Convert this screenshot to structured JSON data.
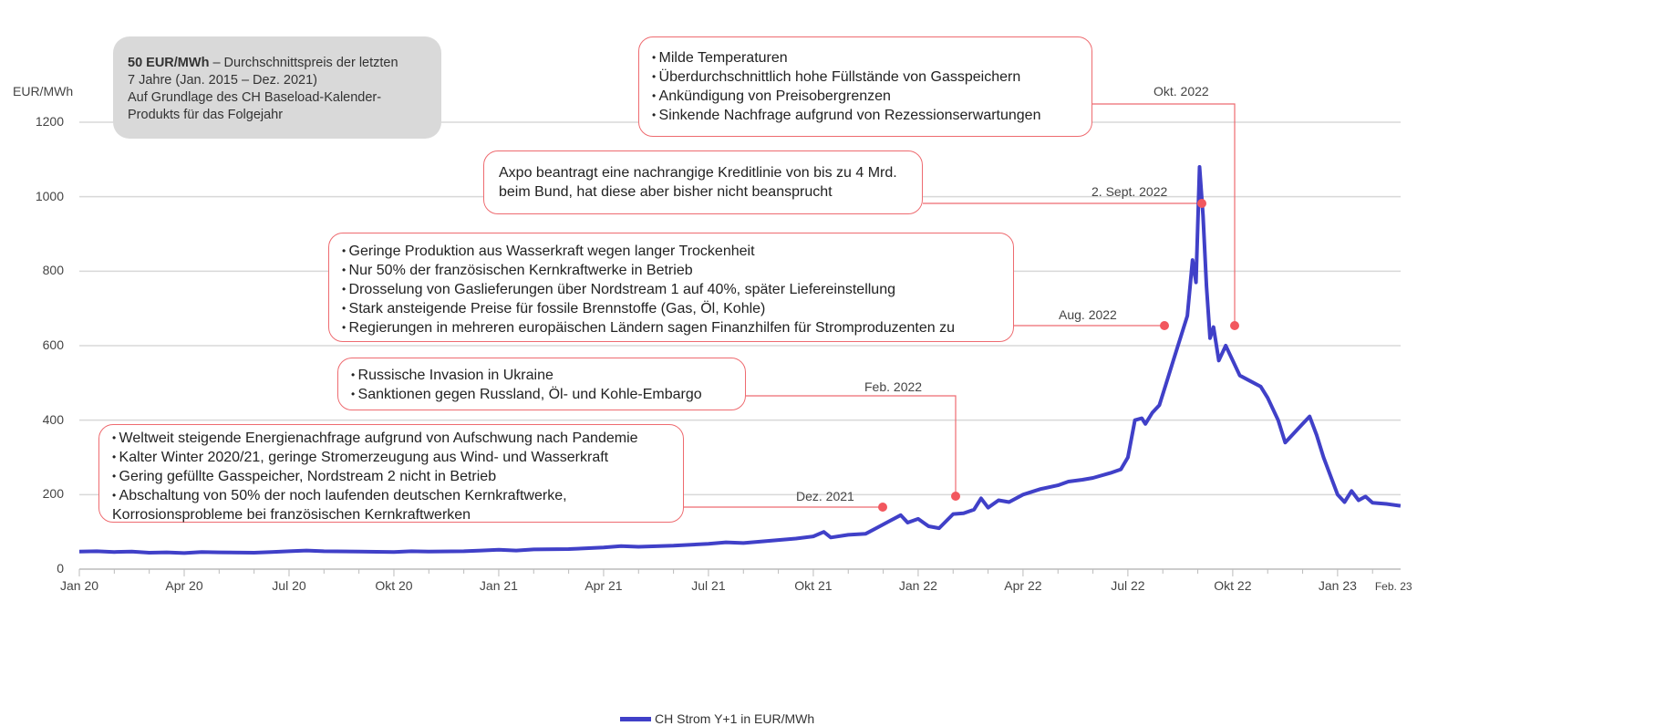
{
  "chart_data": {
    "type": "line",
    "ylabel": "EUR/MWh",
    "ylim": [
      0,
      1200
    ],
    "yticks": [
      "0",
      "200",
      "400",
      "600",
      "800",
      "1000",
      "1200"
    ],
    "xticks": [
      {
        "label": "Jan 20",
        "m": 0
      },
      {
        "label": "Apr 20",
        "m": 3
      },
      {
        "label": "Jul 20",
        "m": 6
      },
      {
        "label": "Okt 20",
        "m": 9
      },
      {
        "label": "Jan 21",
        "m": 12
      },
      {
        "label": "Apr 21",
        "m": 15
      },
      {
        "label": "Jul 21",
        "m": 18
      },
      {
        "label": "Okt 21",
        "m": 21
      },
      {
        "label": "Jan 22",
        "m": 24
      },
      {
        "label": "Apr 22",
        "m": 27
      },
      {
        "label": "Jul 22",
        "m": 30
      },
      {
        "label": "Okt 22",
        "m": 33
      },
      {
        "label": "Jan 23",
        "m": 36
      },
      {
        "label": "Feb. 23",
        "m": 37.6
      }
    ],
    "x_unit": "months since Jan 2020",
    "grid": true,
    "legend": {
      "position": "bottom",
      "label": "CH Strom Y+1 in EUR/MWh"
    },
    "series": [
      {
        "name": "CH Strom Y+1 in EUR/MWh",
        "color": "#4040c8",
        "points": [
          [
            0,
            47
          ],
          [
            0.5,
            48
          ],
          [
            1,
            46
          ],
          [
            1.5,
            47
          ],
          [
            2,
            44
          ],
          [
            2.5,
            45
          ],
          [
            3,
            43
          ],
          [
            3.5,
            46
          ],
          [
            4,
            45
          ],
          [
            5,
            44
          ],
          [
            5.5,
            46
          ],
          [
            6,
            48
          ],
          [
            6.5,
            50
          ],
          [
            7,
            48
          ],
          [
            8,
            47
          ],
          [
            9,
            46
          ],
          [
            9.5,
            48
          ],
          [
            10,
            47
          ],
          [
            11,
            48
          ],
          [
            11.5,
            50
          ],
          [
            12,
            52
          ],
          [
            12.5,
            50
          ],
          [
            13,
            53
          ],
          [
            14,
            54
          ],
          [
            15,
            58
          ],
          [
            15.5,
            62
          ],
          [
            16,
            60
          ],
          [
            17,
            63
          ],
          [
            18,
            68
          ],
          [
            18.5,
            72
          ],
          [
            19,
            70
          ],
          [
            20,
            78
          ],
          [
            20.5,
            82
          ],
          [
            21,
            88
          ],
          [
            21.3,
            100
          ],
          [
            21.5,
            85
          ],
          [
            22,
            92
          ],
          [
            22.5,
            95
          ],
          [
            22.8,
            110
          ],
          [
            23.2,
            130
          ],
          [
            23.5,
            145
          ],
          [
            23.7,
            125
          ],
          [
            24,
            135
          ],
          [
            24.3,
            115
          ],
          [
            24.6,
            110
          ],
          [
            25,
            148
          ],
          [
            25.3,
            150
          ],
          [
            25.6,
            160
          ],
          [
            25.8,
            190
          ],
          [
            26,
            165
          ],
          [
            26.3,
            185
          ],
          [
            26.6,
            180
          ],
          [
            27,
            200
          ],
          [
            27.5,
            215
          ],
          [
            28,
            225
          ],
          [
            28.3,
            235
          ],
          [
            28.7,
            240
          ],
          [
            29,
            245
          ],
          [
            29.5,
            258
          ],
          [
            29.8,
            268
          ],
          [
            30,
            300
          ],
          [
            30.2,
            400
          ],
          [
            30.4,
            405
          ],
          [
            30.5,
            390
          ],
          [
            30.7,
            420
          ],
          [
            30.9,
            440
          ],
          [
            31.1,
            500
          ],
          [
            31.3,
            560
          ],
          [
            31.5,
            620
          ],
          [
            31.7,
            680
          ],
          [
            31.85,
            830
          ],
          [
            31.95,
            770
          ],
          [
            32.05,
            1080
          ],
          [
            32.15,
            950
          ],
          [
            32.25,
            760
          ],
          [
            32.35,
            620
          ],
          [
            32.45,
            650
          ],
          [
            32.6,
            560
          ],
          [
            32.8,
            600
          ],
          [
            33,
            560
          ],
          [
            33.2,
            520
          ],
          [
            33.5,
            505
          ],
          [
            33.8,
            490
          ],
          [
            34,
            460
          ],
          [
            34.3,
            400
          ],
          [
            34.5,
            340
          ],
          [
            34.7,
            360
          ],
          [
            35,
            390
          ],
          [
            35.2,
            410
          ],
          [
            35.4,
            360
          ],
          [
            35.6,
            300
          ],
          [
            35.8,
            250
          ],
          [
            36,
            200
          ],
          [
            36.2,
            180
          ],
          [
            36.4,
            210
          ],
          [
            36.6,
            185
          ],
          [
            36.8,
            195
          ],
          [
            37,
            178
          ],
          [
            37.4,
            175
          ],
          [
            37.8,
            170
          ]
        ]
      }
    ]
  },
  "summary_box": {
    "bold": "50 EUR/MWh",
    "line1_rest": " – Durchschnittspreis der letzten",
    "line2": "7 Jahre (Jan. 2015 – Dez. 2021)",
    "line3": "Auf Grundlage des CH Baseload-Kalender-",
    "line4": "Produkts für das Folgejahr"
  },
  "events": [
    {
      "date": "Okt. 2022",
      "bullets": [
        "Milde Temperaturen",
        "Überdurchschnittlich hohe Füllstände von Gasspeichern",
        "Ankündigung von Preisobergrenzen",
        "Sinkende Nachfrage aufgrund von Rezessionserwartungen"
      ]
    },
    {
      "date": "2. Sept. 2022",
      "text": [
        "Axpo beantragt eine nachrangige Kreditlinie von bis zu 4 Mrd.",
        "beim Bund, hat diese aber bisher nicht beansprucht"
      ]
    },
    {
      "date": "Aug. 2022",
      "bullets": [
        "Geringe Produktion aus Wasserkraft wegen langer Trockenheit",
        "Nur 50% der französischen Kernkraftwerke in Betrieb",
        "Drosselung von Gaslieferungen über Nordstream 1 auf 40%, später Liefereinstellung",
        "Stark ansteigende Preise für fossile Brennstoffe (Gas, Öl, Kohle)",
        "Regierungen in mehreren europäischen Ländern sagen Finanzhilfen für Stromproduzenten zu"
      ]
    },
    {
      "date": "Feb. 2022",
      "bullets": [
        "Russische Invasion in Ukraine",
        "Sanktionen gegen Russland, Öl- und Kohle-Embargo"
      ]
    },
    {
      "date": "Dez. 2021",
      "bullets": [
        "Weltweit steigende Energienachfrage aufgrund von Aufschwung nach Pandemie",
        "Kalter Winter 2020/21, geringe Stromerzeugung aus Wind- und Wasserkraft",
        "Gering gefüllte Gasspeicher, Nordstream 2 nicht in Betrieb",
        "Abschaltung von 50% der noch laufenden deutschen Kernkraftwerke, Korrosionsprobleme bei französischen Kernkraftwerken"
      ]
    }
  ],
  "colors": {
    "line": "#4040c8",
    "annotation": "#ee6b70",
    "grid": "#d8d8d8",
    "summary_bg": "#d9d9d9"
  }
}
